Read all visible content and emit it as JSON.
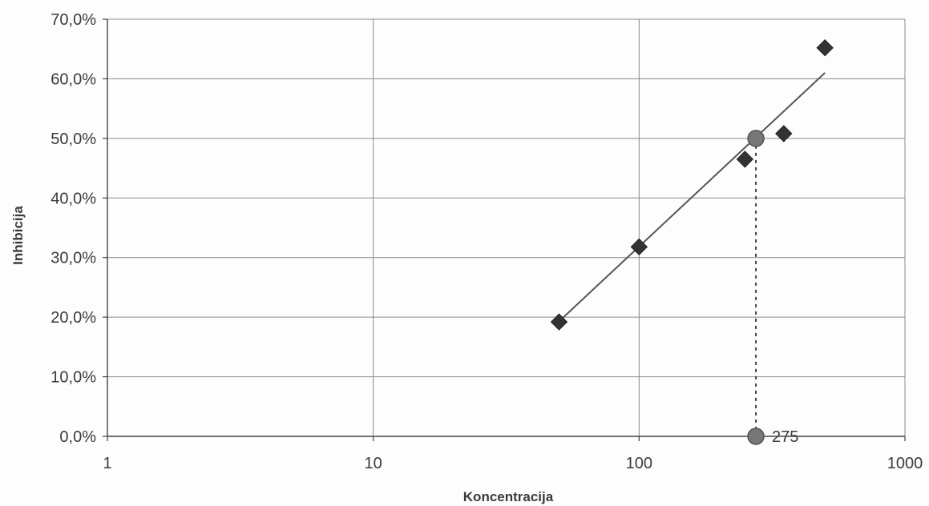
{
  "chart_data": {
    "type": "scatter",
    "title": "",
    "xlabel": "Koncentracija",
    "ylabel": "Inhibicija",
    "x_scale": "log",
    "xlim": [
      1,
      1000
    ],
    "ylim": [
      0,
      0.7
    ],
    "x_ticks": [
      1,
      10,
      100,
      1000
    ],
    "x_tick_labels": [
      "1",
      "10",
      "100",
      "1000"
    ],
    "y_ticks": [
      0,
      0.1,
      0.2,
      0.3,
      0.4,
      0.5,
      0.6,
      0.7
    ],
    "y_tick_labels": [
      "0,0%",
      "10,0%",
      "20,0%",
      "30,0%",
      "40,0%",
      "50,0%",
      "60,0%",
      "70,0%"
    ],
    "grid": true,
    "legend": "none",
    "series": [
      {
        "marker": "diamond",
        "color": "#333333",
        "points": [
          {
            "x": 50,
            "y": 0.192
          },
          {
            "x": 100,
            "y": 0.318
          },
          {
            "x": 250,
            "y": 0.465
          },
          {
            "x": 350,
            "y": 0.508
          },
          {
            "x": 500,
            "y": 0.652
          }
        ]
      }
    ],
    "trendline": {
      "type": "logarithmic",
      "color": "#555555",
      "from": {
        "x": 50,
        "y": 0.193
      },
      "to": {
        "x": 500,
        "y": 0.61
      }
    },
    "highlight_points": [
      {
        "x": 275,
        "y": 0.5,
        "marker": "circle",
        "color": "#777777"
      },
      {
        "x": 275,
        "y": 0.0,
        "marker": "circle",
        "color": "#777777",
        "label": "275"
      }
    ],
    "dotted_line": {
      "x": 275,
      "y_from": 0.0,
      "y_to": 0.5,
      "color": "#444444"
    }
  }
}
